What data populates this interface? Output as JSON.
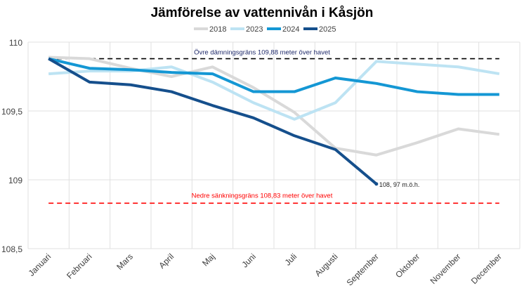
{
  "chart_data": {
    "type": "line",
    "title": "Jämförelse av vattennivån i Kåsjön",
    "categories": [
      "Januari",
      "Februari",
      "Mars",
      "April",
      "Maj",
      "Juni",
      "Juli",
      "Augusti",
      "September",
      "Oktober",
      "November",
      "December"
    ],
    "ylim": [
      108.5,
      110
    ],
    "yticks": [
      108.5,
      109,
      109.5,
      110
    ],
    "ytick_labels": [
      "108,5",
      "109",
      "109,5",
      "110"
    ],
    "grid": true,
    "legend_position": "top",
    "series": [
      {
        "name": "2018",
        "color": "#d9d9d9",
        "values": [
          109.89,
          109.88,
          109.81,
          109.75,
          109.82,
          109.67,
          109.49,
          109.23,
          109.18,
          109.27,
          109.37,
          109.33
        ]
      },
      {
        "name": "2023",
        "color": "#bde3f3",
        "values": [
          109.77,
          109.79,
          109.79,
          109.82,
          109.71,
          109.56,
          109.44,
          109.56,
          109.86,
          109.84,
          109.82,
          109.77
        ]
      },
      {
        "name": "2024",
        "color": "#1497d4",
        "values": [
          109.88,
          109.81,
          109.8,
          109.78,
          109.77,
          109.64,
          109.64,
          109.74,
          109.7,
          109.64,
          109.62,
          109.62
        ]
      },
      {
        "name": "2025",
        "color": "#154f8c",
        "values": [
          109.88,
          109.71,
          109.69,
          109.64,
          109.54,
          109.45,
          109.32,
          109.22,
          108.97,
          null,
          null,
          null
        ]
      }
    ],
    "reference_lines": [
      {
        "value": 109.88,
        "color": "#000000",
        "label": "Övre dämningsgräns 109,88 meter över havet",
        "label_color": "#1f2a6b"
      },
      {
        "value": 108.83,
        "color": "#ff0000",
        "label": "Nedre sänkningsgräns 108,83 meter över havet",
        "label_color": "#ff0000"
      }
    ],
    "annotations": [
      {
        "text": "108, 97 m.ö.h.",
        "series": "2025",
        "category": "September"
      }
    ]
  }
}
